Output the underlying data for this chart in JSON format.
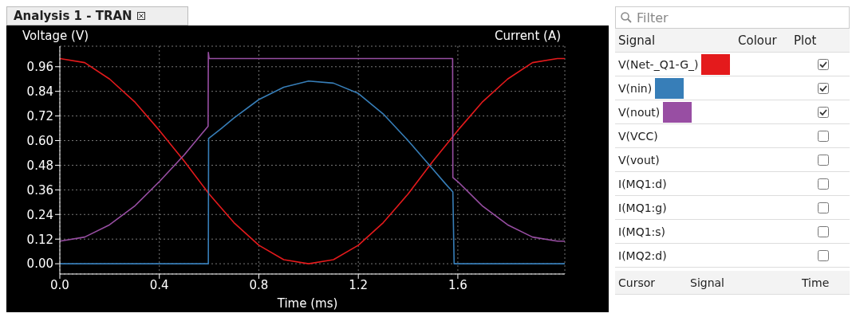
{
  "chart_data": {
    "type": "line",
    "title": "Analysis 1 - TRAN",
    "xlabel": "Time (ms)",
    "ylabel": "Voltage (V)",
    "y2label": "Current (A)",
    "xlim": [
      0,
      2.03
    ],
    "ylim": [
      -0.05,
      1.06
    ],
    "xticks": [
      {
        "value": 0,
        "label": "0.0"
      },
      {
        "value": 0.4,
        "label": "0.4"
      },
      {
        "value": 0.8,
        "label": "0.8"
      },
      {
        "value": 1.2,
        "label": "1.2"
      },
      {
        "value": 1.6,
        "label": "1.6"
      }
    ],
    "yticks": [
      {
        "value": 0,
        "label": "0.00"
      },
      {
        "value": 0.12,
        "label": "0.12"
      },
      {
        "value": 0.24,
        "label": "0.24"
      },
      {
        "value": 0.36,
        "label": "0.36"
      },
      {
        "value": 0.48,
        "label": "0.48"
      },
      {
        "value": 0.6,
        "label": "0.60"
      },
      {
        "value": 0.72,
        "label": "0.72"
      },
      {
        "value": 0.84,
        "label": "0.84"
      },
      {
        "value": 0.96,
        "label": "0.96"
      }
    ],
    "grid": true,
    "legend": "right",
    "series": [
      {
        "name": "V(Net-_Q1-G_)",
        "color": "#e41a1c",
        "x": [
          0,
          0.1,
          0.2,
          0.3,
          0.4,
          0.5,
          0.6,
          0.7,
          0.8,
          0.9,
          1.0,
          1.1,
          1.2,
          1.3,
          1.4,
          1.5,
          1.6,
          1.7,
          1.8,
          1.9,
          2.0,
          2.03
        ],
        "values": [
          1.0,
          0.98,
          0.9,
          0.79,
          0.65,
          0.5,
          0.34,
          0.2,
          0.09,
          0.02,
          0.0,
          0.02,
          0.09,
          0.2,
          0.34,
          0.5,
          0.65,
          0.79,
          0.9,
          0.98,
          1.0,
          1.0
        ]
      },
      {
        "name": "V(nin)",
        "color": "#377eb8",
        "x": [
          0,
          0.597,
          0.598,
          0.65,
          0.7,
          0.8,
          0.9,
          1.0,
          1.1,
          1.2,
          1.3,
          1.4,
          1.5,
          1.55,
          1.58,
          1.585,
          1.7,
          2.03
        ],
        "values": [
          0,
          0,
          0.61,
          0.66,
          0.71,
          0.8,
          0.86,
          0.89,
          0.88,
          0.83,
          0.73,
          0.6,
          0.46,
          0.39,
          0.35,
          0,
          0,
          0
        ]
      },
      {
        "name": "V(nout)",
        "color": "#984ea3",
        "x": [
          0,
          0.1,
          0.2,
          0.3,
          0.4,
          0.5,
          0.596,
          0.597,
          0.6,
          0.65,
          1.0,
          1.579,
          1.58,
          1.6,
          1.7,
          1.8,
          1.9,
          2.0,
          2.03
        ],
        "values": [
          0.11,
          0.13,
          0.19,
          0.28,
          0.4,
          0.53,
          0.67,
          1.03,
          1.0,
          1.0,
          1.0,
          1.0,
          0.42,
          0.4,
          0.28,
          0.19,
          0.13,
          0.11,
          0.11
        ]
      }
    ],
    "annotations": [
      "Filter",
      "Signal",
      "Plot",
      "Colour",
      "V(VCC)",
      "V(vout)",
      "I(MQ1:d)",
      "I(MQ1:g)",
      "I(MQ1:s)",
      "I(MQ2:d)",
      "Cursor",
      "Signal",
      "Time"
    ]
  }
}
